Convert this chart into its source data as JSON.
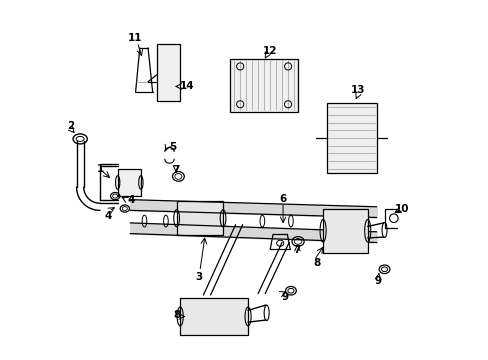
{
  "bg_color": "#ffffff",
  "line_color": "#000000",
  "figure_width": 4.89,
  "figure_height": 3.6,
  "dpi": 100
}
